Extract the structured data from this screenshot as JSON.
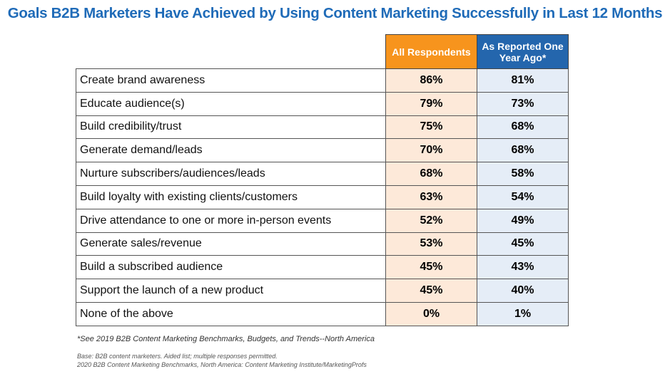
{
  "chart_data": {
    "type": "table",
    "title": "Goals B2B Marketers Have Achieved by Using Content Marketing Successfully in Last 12 Months",
    "columns": [
      "All Respondents",
      "As Reported One Year Ago*"
    ],
    "colors": {
      "all_respondents": "#f7941d",
      "year_ago": "#2466ad",
      "title": "#1f6bb8"
    },
    "rows": [
      {
        "label": "Create brand awareness",
        "all": "86%",
        "prior": "81%"
      },
      {
        "label": "Educate audience(s)",
        "all": "79%",
        "prior": "73%"
      },
      {
        "label": "Build credibility/trust",
        "all": "75%",
        "prior": "68%"
      },
      {
        "label": "Generate demand/leads",
        "all": "70%",
        "prior": "68%"
      },
      {
        "label": "Nurture subscribers/audiences/leads",
        "all": "68%",
        "prior": "58%"
      },
      {
        "label": "Build loyalty with existing clients/customers",
        "all": "63%",
        "prior": "54%"
      },
      {
        "label": "Drive attendance to one or more in-person events",
        "all": "52%",
        "prior": "49%"
      },
      {
        "label": "Generate sales/revenue",
        "all": "53%",
        "prior": "45%"
      },
      {
        "label": "Build a subscribed audience",
        "all": "45%",
        "prior": "43%"
      },
      {
        "label": "Support the launch of a new product",
        "all": "45%",
        "prior": "40%"
      },
      {
        "label": "None of the above",
        "all": "0%",
        "prior": "1%"
      }
    ],
    "footnote": "*See 2019 B2B Content Marketing Benchmarks, Budgets, and Trends--North America",
    "base": "Base: B2B content marketers. Aided list; multiple responses permitted.",
    "source": "2020 B2B Content Marketing Benchmarks, North America: Content Marketing Institute/MarketingProfs"
  }
}
